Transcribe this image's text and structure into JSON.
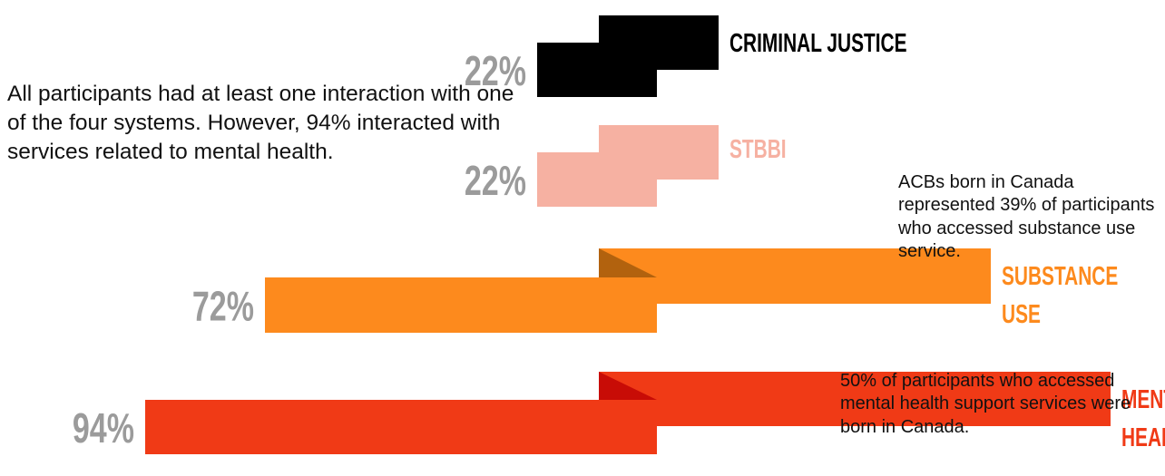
{
  "intro_text": "All participants had at least one interaction with one of the four systems. However, 94% interacted with services related to mental health.",
  "notes": [
    "ACBs born in Canada represented 39% of participants who accessed substance use service.",
    "50% of participants who accessed mental health support services were born in Canada."
  ],
  "chart_data": {
    "type": "bar",
    "orientation": "horizontal",
    "title": "",
    "xlabel": "",
    "ylabel": "",
    "unit": "%",
    "categories": [
      [
        "CRIMINAL JUSTICE"
      ],
      [
        "STBBI"
      ],
      [
        "SUBSTANCE",
        "USE"
      ],
      [
        "MENTAL",
        "HEALTH"
      ]
    ],
    "values": [
      22,
      22,
      72,
      94
    ],
    "value_labels": [
      "22%",
      "22%",
      "72%",
      "94%"
    ],
    "colors": [
      "#000000",
      "#f6b1a2",
      "#fd8a1d",
      "#f03a16"
    ],
    "label_colors": [
      "#000000",
      "#f6b1a2",
      "#fd8a1d",
      "#f03a16"
    ],
    "fold_colors": [
      "#000000",
      "#f6b1a2",
      "#b2620e",
      "#c80c06"
    ],
    "value_label_color": "#9b9b9b"
  }
}
